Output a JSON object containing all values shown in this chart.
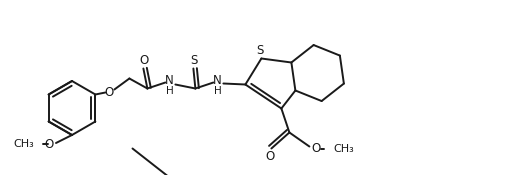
{
  "bg_color": "#ffffff",
  "line_color": "#1a1a1a",
  "lw": 1.4,
  "figsize": [
    5.1,
    1.75
  ],
  "dpi": 100,
  "xlim": [
    0,
    510
  ],
  "ylim": [
    0,
    175
  ]
}
